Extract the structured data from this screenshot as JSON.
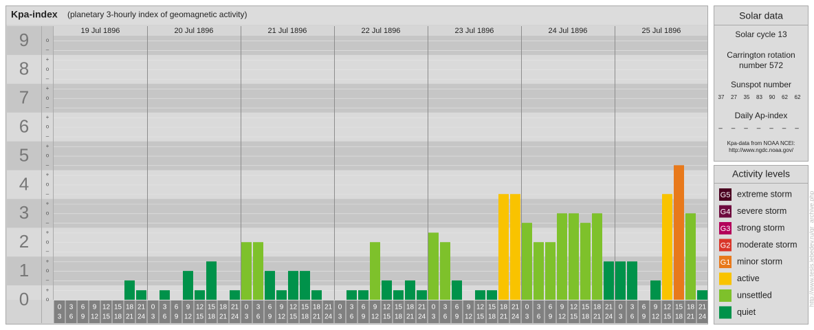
{
  "chart_data": {
    "type": "bar",
    "title": "Kpa-index",
    "subtitle": "(planetary 3-hourly index of geomagnetic activity)",
    "categories": [
      "19 Jul 1896",
      "20 Jul 1896",
      "21 Jul 1896",
      "22 Jul 1896",
      "23 Jul 1896",
      "24 Jul 1896",
      "25 Jul 1896"
    ],
    "slot_hours": [
      0,
      3,
      6,
      9,
      12,
      15,
      18,
      21,
      24
    ],
    "values": [
      [
        0,
        0,
        0,
        0,
        0,
        0,
        0.67,
        0.33
      ],
      [
        0,
        0.33,
        0,
        1,
        0.33,
        1.33,
        0,
        0.33
      ],
      [
        2,
        2,
        1,
        0.33,
        1,
        1,
        0.33,
        0
      ],
      [
        0,
        0.33,
        0.33,
        2,
        0.67,
        0.33,
        0.67,
        0.33
      ],
      [
        2.33,
        2,
        0.67,
        0,
        0.33,
        0.33,
        3.67,
        3.67
      ],
      [
        2.67,
        2,
        2,
        3,
        3,
        2.67,
        3,
        1.33
      ],
      [
        1.33,
        1.33,
        0,
        0.67,
        3.67,
        4.67,
        3,
        0.33
      ]
    ],
    "colors": [
      [
        "#00924a",
        "#00924a",
        "#00924a",
        "#00924a",
        "#00924a",
        "#00924a",
        "#00924a",
        "#00924a"
      ],
      [
        "#00924a",
        "#00924a",
        "#00924a",
        "#00924a",
        "#00924a",
        "#00924a",
        "#00924a",
        "#00924a"
      ],
      [
        "#7ec12b",
        "#7ec12b",
        "#00924a",
        "#00924a",
        "#00924a",
        "#00924a",
        "#00924a",
        "#00924a"
      ],
      [
        "#00924a",
        "#00924a",
        "#00924a",
        "#7ec12b",
        "#00924a",
        "#00924a",
        "#00924a",
        "#00924a"
      ],
      [
        "#7ec12b",
        "#7ec12b",
        "#00924a",
        "#00924a",
        "#00924a",
        "#00924a",
        "#f9c300",
        "#f9c300"
      ],
      [
        "#7ec12b",
        "#7ec12b",
        "#7ec12b",
        "#7ec12b",
        "#7ec12b",
        "#7ec12b",
        "#7ec12b",
        "#00924a"
      ],
      [
        "#00924a",
        "#00924a",
        "#00924a",
        "#00924a",
        "#f9c300",
        "#e8791b",
        "#7ec12b",
        "#00924a"
      ]
    ],
    "ylim": [
      0,
      9.5
    ],
    "yticks": [
      0,
      1,
      2,
      3,
      4,
      5,
      6,
      7,
      8,
      9
    ],
    "minor_ticks": [
      {
        "value": 0,
        "label": "o"
      },
      {
        "value": 0.33,
        "label": "+"
      },
      {
        "value": 0.67,
        "label": "–"
      },
      {
        "value": 1,
        "label": "o"
      },
      {
        "value": 1.33,
        "label": "+"
      },
      {
        "value": 1.67,
        "label": "–"
      },
      {
        "value": 2,
        "label": "o"
      },
      {
        "value": 2.33,
        "label": "+"
      },
      {
        "value": 2.67,
        "label": "–"
      },
      {
        "value": 3,
        "label": "o"
      },
      {
        "value": 3.33,
        "label": "+"
      },
      {
        "value": 3.67,
        "label": "–"
      },
      {
        "value": 4,
        "label": "o"
      },
      {
        "value": 4.33,
        "label": "+"
      },
      {
        "value": 4.67,
        "label": "–"
      },
      {
        "value": 5,
        "label": "o"
      },
      {
        "value": 5.33,
        "label": "+"
      },
      {
        "value": 5.67,
        "label": "–"
      },
      {
        "value": 6,
        "label": "o"
      },
      {
        "value": 6.33,
        "label": "+"
      },
      {
        "value": 6.67,
        "label": "–"
      },
      {
        "value": 7,
        "label": "o"
      },
      {
        "value": 7.33,
        "label": "+"
      },
      {
        "value": 7.67,
        "label": "–"
      },
      {
        "value": 8,
        "label": "o"
      },
      {
        "value": 8.33,
        "label": "+"
      },
      {
        "value": 8.67,
        "label": "–"
      },
      {
        "value": 9,
        "label": "o"
      }
    ],
    "grid": true
  },
  "solar_data": {
    "title": "Solar data",
    "solar_cycle": "Solar cycle 13",
    "carrington": [
      "Carrington rotation",
      "number 572"
    ],
    "sunspot_title": "Sunspot number",
    "sunspot_numbers": [
      37,
      27,
      35,
      83,
      90,
      62,
      62
    ],
    "ap_title": "Daily Ap-index",
    "ap_values": [
      "–",
      "–",
      "–",
      "–",
      "–",
      "–",
      "–"
    ],
    "source": [
      "Kpa-data from NOAA NCEI:",
      "http://www.ngdc.noaa.gov/"
    ]
  },
  "activity_levels": {
    "title": "Activity levels",
    "items": [
      {
        "badge": "G5",
        "name": "extreme storm",
        "color": "#4a0020"
      },
      {
        "badge": "G4",
        "name": "severe storm",
        "color": "#6e0a3e"
      },
      {
        "badge": "G3",
        "name": "strong storm",
        "color": "#b3005a"
      },
      {
        "badge": "G2",
        "name": "moderate storm",
        "color": "#d9362a"
      },
      {
        "badge": "G1",
        "name": "minor storm",
        "color": "#e8791b"
      },
      {
        "name": "active",
        "color": "#f9c300"
      },
      {
        "name": "unsettled",
        "color": "#7ec12b"
      },
      {
        "name": "quiet",
        "color": "#00924a"
      }
    ]
  },
  "watermark": "http://www.tesis.lebedev.ru/gr_archive.php"
}
